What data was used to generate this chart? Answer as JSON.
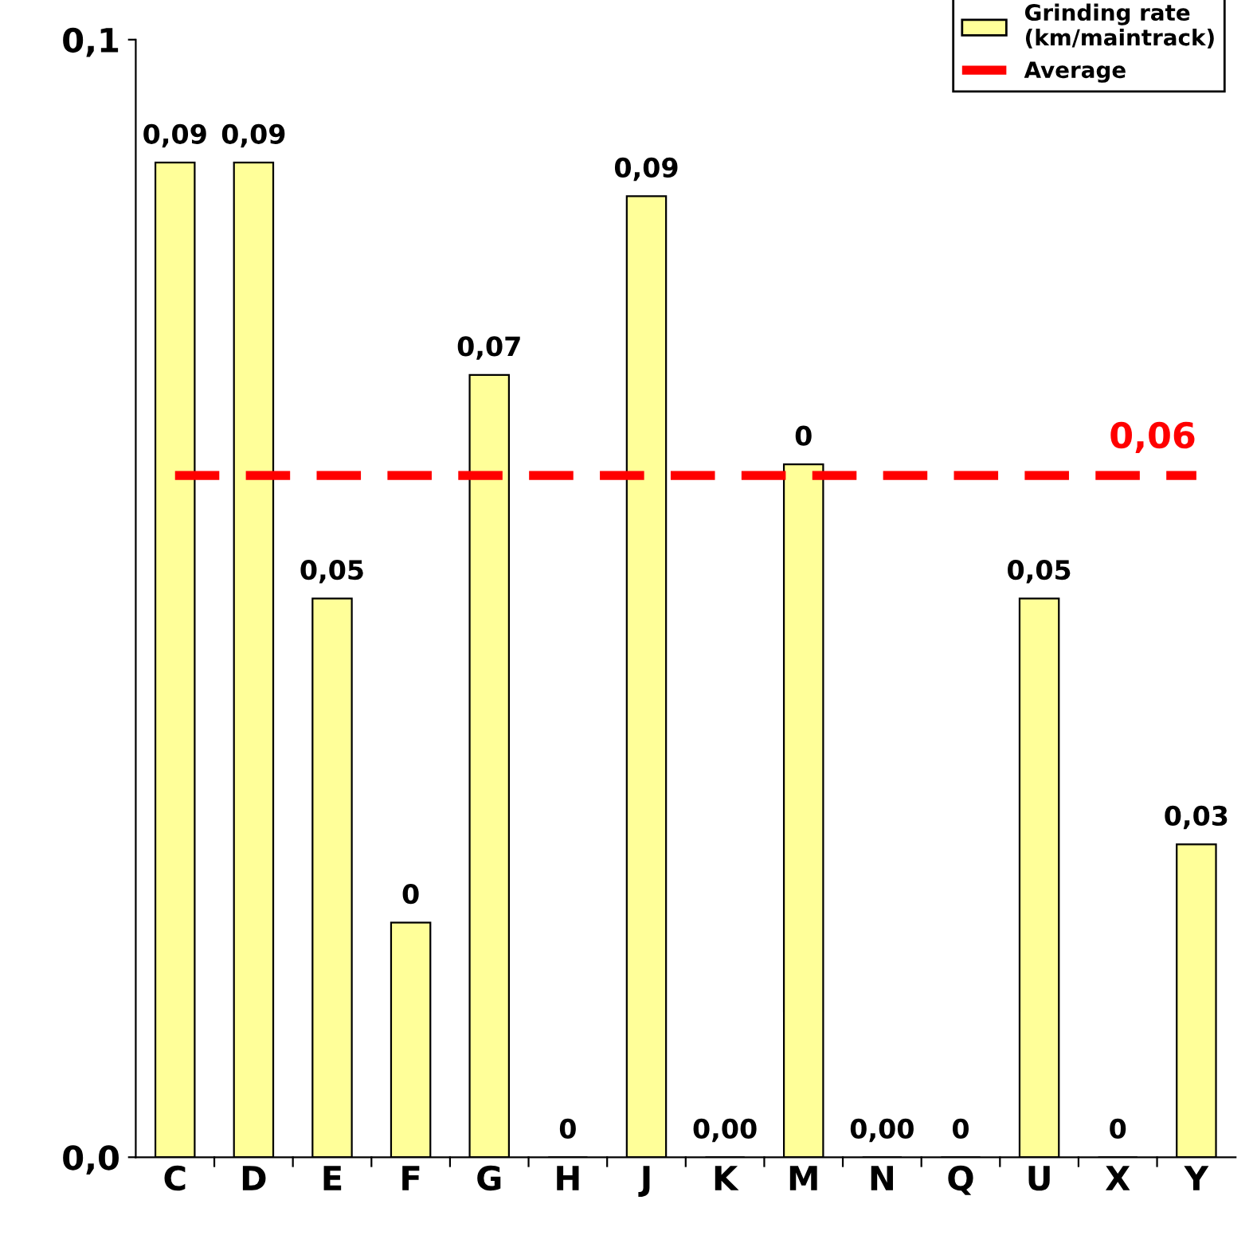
{
  "chart_data": {
    "type": "bar",
    "categories": [
      "C",
      "D",
      "E",
      "F",
      "G",
      "H",
      "J",
      "K",
      "M",
      "N",
      "Q",
      "U",
      "X",
      "Y"
    ],
    "series": [
      {
        "name": "Grinding rate\n(km/maintrack)",
        "color": "#ffff99",
        "values": [
          0.089,
          0.089,
          0.05,
          0.021,
          0.07,
          0,
          0.086,
          0,
          0.062,
          0,
          0,
          0.05,
          0,
          0.028
        ],
        "value_labels": [
          "0,09",
          "0,09",
          "0,05",
          "0",
          "0,07",
          "0",
          "0,09",
          "0,00",
          "0",
          "0,00",
          "0",
          "0,05",
          "0",
          "0,03"
        ]
      },
      {
        "name": "Average",
        "type": "line",
        "color": "#ff0000",
        "line_style": "dashed",
        "marker": "none",
        "values": [
          0.061,
          0.061,
          0.061,
          0.061,
          0.061,
          0.061,
          0.061,
          0.061,
          0.061,
          0.061,
          0.061,
          0.061,
          0.061,
          0.061
        ],
        "value_labels": [
          null,
          null,
          null,
          null,
          null,
          null,
          null,
          null,
          null,
          null,
          null,
          null,
          null,
          "0,06"
        ]
      }
    ],
    "ylim": [
      0,
      0.1
    ],
    "yticks": [
      {
        "value": 0,
        "label": "0,0"
      },
      {
        "value": 0.1,
        "label": "0,1"
      }
    ],
    "grid": false,
    "legend": "top right"
  }
}
